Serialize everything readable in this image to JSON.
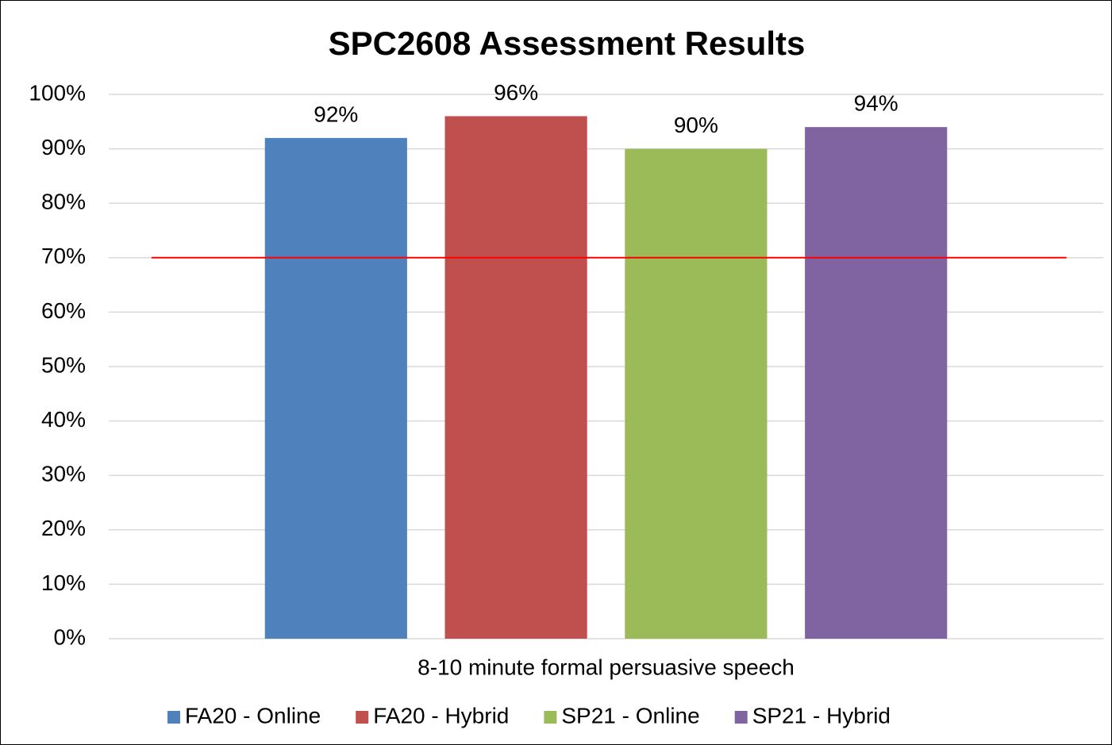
{
  "chart_data": {
    "type": "bar",
    "title": "SPC2608 Assessment Results",
    "categories": [
      "8-10 minute formal persuasive speech"
    ],
    "series": [
      {
        "name": "FA20 - Online",
        "color": "#4f81bd",
        "values": [
          92
        ],
        "value_labels": [
          "92%"
        ]
      },
      {
        "name": "FA20 - Hybrid",
        "color": "#c0504d",
        "values": [
          96
        ],
        "value_labels": [
          "96%"
        ]
      },
      {
        "name": "SP21 - Online",
        "color": "#9bbb59",
        "values": [
          90
        ],
        "value_labels": [
          "90%"
        ]
      },
      {
        "name": "SP21 - Hybrid",
        "color": "#8064a2",
        "values": [
          94
        ],
        "value_labels": [
          "94%"
        ]
      }
    ],
    "reference_line": {
      "value": 70,
      "color": "#ff0000"
    },
    "ylim": [
      0,
      100
    ],
    "yticks": [
      {
        "value": 0,
        "label": "0%"
      },
      {
        "value": 10,
        "label": "10%"
      },
      {
        "value": 20,
        "label": "20%"
      },
      {
        "value": 30,
        "label": "30%"
      },
      {
        "value": 40,
        "label": "40%"
      },
      {
        "value": 50,
        "label": "50%"
      },
      {
        "value": 60,
        "label": "60%"
      },
      {
        "value": 70,
        "label": "70%"
      },
      {
        "value": 80,
        "label": "80%"
      },
      {
        "value": 90,
        "label": "90%"
      },
      {
        "value": 100,
        "label": "100%"
      }
    ],
    "grid": true,
    "legend": "bottom"
  }
}
